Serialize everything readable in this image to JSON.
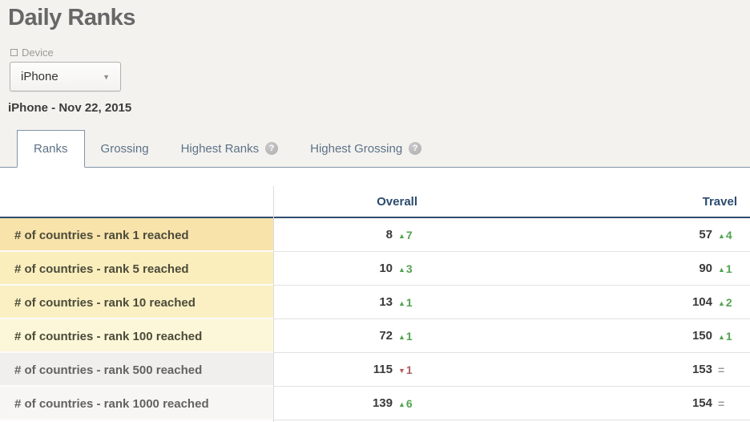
{
  "page": {
    "title": "Daily Ranks",
    "subtitle": "iPhone - Nov 22, 2015"
  },
  "filter": {
    "label": "Device",
    "value": "iPhone"
  },
  "icons": {
    "caret": "▼",
    "help": "?"
  },
  "glyphs": {
    "up": "▲",
    "down": "▼",
    "same": "="
  },
  "tabs": [
    {
      "label": "Ranks",
      "active": true,
      "help": false
    },
    {
      "label": "Grossing",
      "active": false,
      "help": false
    },
    {
      "label": "Highest Ranks",
      "active": false,
      "help": true
    },
    {
      "label": "Highest Grossing",
      "active": false,
      "help": true
    }
  ],
  "table": {
    "columns": [
      {
        "label": "",
        "key": "label"
      },
      {
        "label": "Overall",
        "key": "overall"
      },
      {
        "label": "Travel",
        "key": "travel"
      }
    ],
    "rows": [
      {
        "label": "# of countries - rank 1 reached",
        "tint": "gold-1",
        "overall": {
          "value": "8",
          "change": 7,
          "direction": "up"
        },
        "travel": {
          "value": "57",
          "change": 4,
          "direction": "up"
        }
      },
      {
        "label": "# of countries - rank 5 reached",
        "tint": "gold-2",
        "overall": {
          "value": "10",
          "change": 3,
          "direction": "up"
        },
        "travel": {
          "value": "90",
          "change": 1,
          "direction": "up"
        }
      },
      {
        "label": "# of countries - rank 10 reached",
        "tint": "gold-3",
        "overall": {
          "value": "13",
          "change": 1,
          "direction": "up"
        },
        "travel": {
          "value": "104",
          "change": 2,
          "direction": "up"
        }
      },
      {
        "label": "# of countries - rank 100 reached",
        "tint": "gold-4",
        "overall": {
          "value": "72",
          "change": 1,
          "direction": "up"
        },
        "travel": {
          "value": "150",
          "change": 1,
          "direction": "up"
        }
      },
      {
        "label": "# of countries - rank 500 reached",
        "tint": "gray-1",
        "overall": {
          "value": "115",
          "change": 1,
          "direction": "down"
        },
        "travel": {
          "value": "153",
          "change": 0,
          "direction": "same"
        }
      },
      {
        "label": "# of countries - rank 1000 reached",
        "tint": "gray-2",
        "overall": {
          "value": "139",
          "change": 6,
          "direction": "up"
        },
        "travel": {
          "value": "154",
          "change": 0,
          "direction": "same"
        }
      }
    ]
  },
  "colors": {
    "up_green": "#52a452",
    "down_red": "#b05a60",
    "same_gray": "#9b9b9b",
    "header_navy": "#2b4c6e",
    "tab_slate": "#5d7286",
    "highlight_gold_1": "#f8e3ab",
    "highlight_gold_2": "#faeebd",
    "highlight_gold_3": "#faf0c4",
    "highlight_gold_4": "#fbf7d8",
    "row_gray_1": "#f0efee",
    "row_gray_2": "#f7f6f5"
  }
}
